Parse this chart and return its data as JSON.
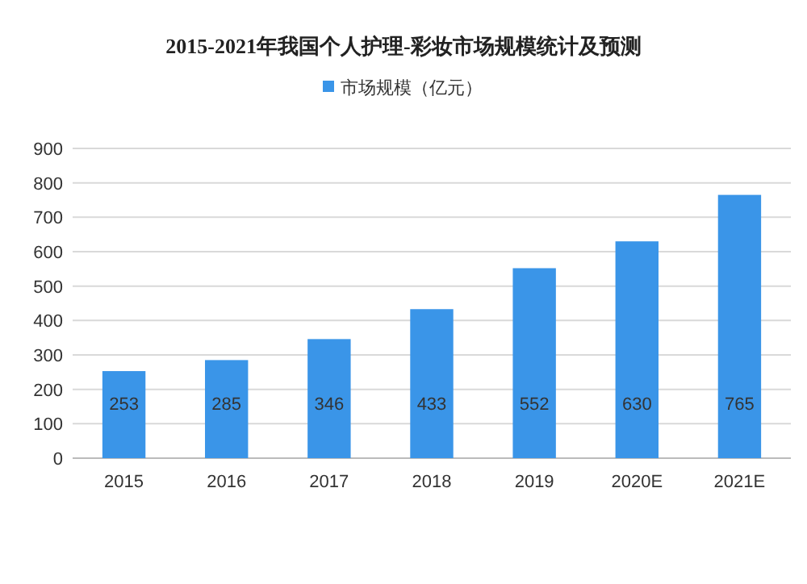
{
  "chart_data": {
    "type": "bar",
    "title": "2015-2021年我国个人护理-彩妆市场规模统计及预测",
    "categories": [
      "2015",
      "2016",
      "2017",
      "2018",
      "2019",
      "2020E",
      "2021E"
    ],
    "series": [
      {
        "name": "市场规模（亿元）",
        "color": "#3a95e8",
        "values": [
          253,
          285,
          346,
          433,
          552,
          630,
          765
        ]
      }
    ],
    "ylim": [
      0,
      900
    ],
    "yticks": [
      0,
      100,
      200,
      300,
      400,
      500,
      600,
      700,
      800,
      900
    ],
    "grid": "y",
    "legend": "top",
    "data_labels": true
  }
}
